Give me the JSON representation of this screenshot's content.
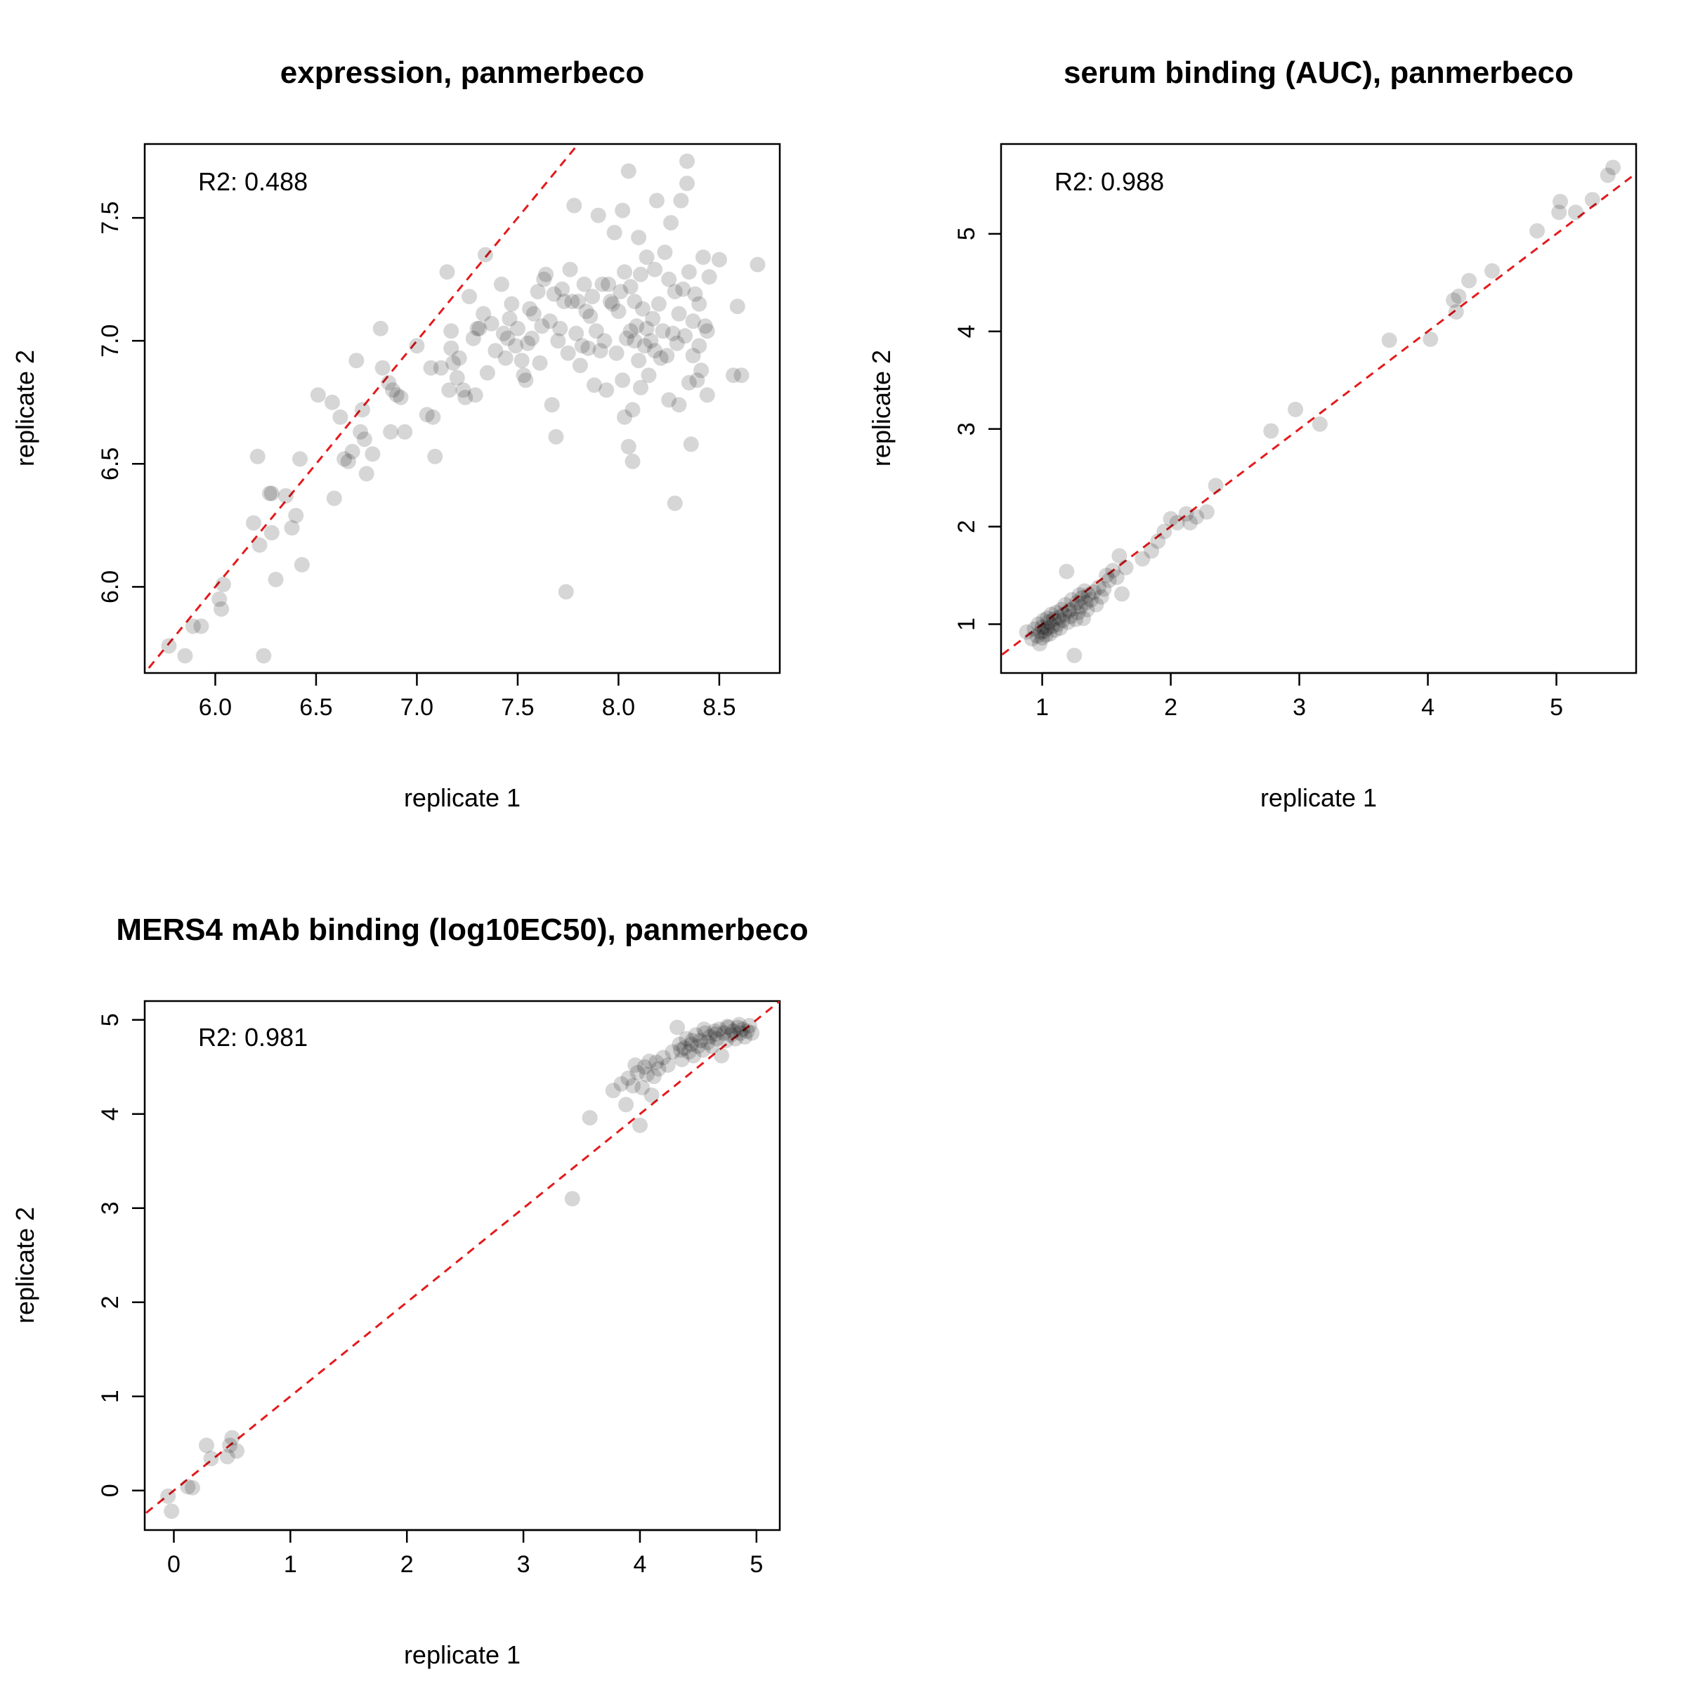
{
  "chart_data": [
    {
      "type": "scatter",
      "title": "expression, panmerbeco",
      "xlabel": "replicate 1",
      "ylabel": "replicate 2",
      "annotation": "R2: 0.488",
      "xlim": [
        5.65,
        8.8
      ],
      "ylim": [
        5.65,
        7.8
      ],
      "xticks": [
        "6.0",
        "6.5",
        "7.0",
        "7.5",
        "8.0",
        "8.5"
      ],
      "yticks": [
        "6.0",
        "6.5",
        "7.0",
        "7.5"
      ],
      "reference_line": "y = x",
      "grid": false,
      "points": [
        [
          5.77,
          5.76
        ],
        [
          5.85,
          5.72
        ],
        [
          5.89,
          5.84
        ],
        [
          5.93,
          5.84
        ],
        [
          6.02,
          5.95
        ],
        [
          6.03,
          5.91
        ],
        [
          6.04,
          6.01
        ],
        [
          6.19,
          6.26
        ],
        [
          6.21,
          6.53
        ],
        [
          6.22,
          6.17
        ],
        [
          6.24,
          5.72
        ],
        [
          6.27,
          6.38
        ],
        [
          6.28,
          6.38
        ],
        [
          6.28,
          6.22
        ],
        [
          6.3,
          6.03
        ],
        [
          6.35,
          6.37
        ],
        [
          6.38,
          6.24
        ],
        [
          6.4,
          6.29
        ],
        [
          6.42,
          6.52
        ],
        [
          6.43,
          6.09
        ],
        [
          6.51,
          6.78
        ],
        [
          6.58,
          6.75
        ],
        [
          6.59,
          6.36
        ],
        [
          6.62,
          6.69
        ],
        [
          6.64,
          6.52
        ],
        [
          6.66,
          6.51
        ],
        [
          6.68,
          6.55
        ],
        [
          6.7,
          6.92
        ],
        [
          6.72,
          6.63
        ],
        [
          6.73,
          6.72
        ],
        [
          6.74,
          6.6
        ],
        [
          6.75,
          6.46
        ],
        [
          6.78,
          6.54
        ],
        [
          6.82,
          7.05
        ],
        [
          6.83,
          6.89
        ],
        [
          6.86,
          6.83
        ],
        [
          6.87,
          6.63
        ],
        [
          6.88,
          6.8
        ],
        [
          6.9,
          6.78
        ],
        [
          6.92,
          6.77
        ],
        [
          6.94,
          6.63
        ],
        [
          7.0,
          6.98
        ],
        [
          7.05,
          6.7
        ],
        [
          7.07,
          6.89
        ],
        [
          7.08,
          6.69
        ],
        [
          7.09,
          6.53
        ],
        [
          7.12,
          6.89
        ],
        [
          7.15,
          7.28
        ],
        [
          7.16,
          6.8
        ],
        [
          7.17,
          7.04
        ],
        [
          7.17,
          6.97
        ],
        [
          7.18,
          6.91
        ],
        [
          7.2,
          6.85
        ],
        [
          7.21,
          6.93
        ],
        [
          7.23,
          6.8
        ],
        [
          7.24,
          6.77
        ],
        [
          7.26,
          7.18
        ],
        [
          7.28,
          7.01
        ],
        [
          7.29,
          6.78
        ],
        [
          7.3,
          7.05
        ],
        [
          7.31,
          7.05
        ],
        [
          7.33,
          7.11
        ],
        [
          7.34,
          7.35
        ],
        [
          7.35,
          6.87
        ],
        [
          7.37,
          7.07
        ],
        [
          7.39,
          6.96
        ],
        [
          7.42,
          7.23
        ],
        [
          7.43,
          7.03
        ],
        [
          7.44,
          6.93
        ],
        [
          7.45,
          7.01
        ],
        [
          7.46,
          7.09
        ],
        [
          7.47,
          7.15
        ],
        [
          7.49,
          6.98
        ],
        [
          7.5,
          7.05
        ],
        [
          7.52,
          6.92
        ],
        [
          7.53,
          6.86
        ],
        [
          7.54,
          6.84
        ],
        [
          7.55,
          6.99
        ],
        [
          7.56,
          7.13
        ],
        [
          7.57,
          7.01
        ],
        [
          7.58,
          7.11
        ],
        [
          7.6,
          7.2
        ],
        [
          7.61,
          6.91
        ],
        [
          7.62,
          7.06
        ],
        [
          7.63,
          7.25
        ],
        [
          7.64,
          7.27
        ],
        [
          7.66,
          7.08
        ],
        [
          7.67,
          6.74
        ],
        [
          7.68,
          7.19
        ],
        [
          7.69,
          6.61
        ],
        [
          7.7,
          7.0
        ],
        [
          7.71,
          7.05
        ],
        [
          7.72,
          7.21
        ],
        [
          7.73,
          7.16
        ],
        [
          7.74,
          5.98
        ],
        [
          7.75,
          6.95
        ],
        [
          7.76,
          7.29
        ],
        [
          7.77,
          7.16
        ],
        [
          7.78,
          7.55
        ],
        [
          7.79,
          7.03
        ],
        [
          7.8,
          7.16
        ],
        [
          7.81,
          6.9
        ],
        [
          7.82,
          6.98
        ],
        [
          7.83,
          7.23
        ],
        [
          7.84,
          7.12
        ],
        [
          7.85,
          6.97
        ],
        [
          7.86,
          7.1
        ],
        [
          7.87,
          7.18
        ],
        [
          7.88,
          6.82
        ],
        [
          7.89,
          7.04
        ],
        [
          7.9,
          7.51
        ],
        [
          7.91,
          6.96
        ],
        [
          7.92,
          7.23
        ],
        [
          7.93,
          7.0
        ],
        [
          7.94,
          6.8
        ],
        [
          7.95,
          7.23
        ],
        [
          7.96,
          7.16
        ],
        [
          7.97,
          7.15
        ],
        [
          7.98,
          7.44
        ],
        [
          7.99,
          6.95
        ],
        [
          8.0,
          7.12
        ],
        [
          8.01,
          7.2
        ],
        [
          8.02,
          7.53
        ],
        [
          8.02,
          6.84
        ],
        [
          8.03,
          7.28
        ],
        [
          8.03,
          6.69
        ],
        [
          8.04,
          7.01
        ],
        [
          8.05,
          6.57
        ],
        [
          8.05,
          7.69
        ],
        [
          8.06,
          7.22
        ],
        [
          8.06,
          7.04
        ],
        [
          8.07,
          6.72
        ],
        [
          8.07,
          6.51
        ],
        [
          8.08,
          7.16
        ],
        [
          8.08,
          7.0
        ],
        [
          8.09,
          7.06
        ],
        [
          8.1,
          7.42
        ],
        [
          8.1,
          6.92
        ],
        [
          8.11,
          6.81
        ],
        [
          8.11,
          7.27
        ],
        [
          8.12,
          7.13
        ],
        [
          8.13,
          6.98
        ],
        [
          8.14,
          7.05
        ],
        [
          8.14,
          7.34
        ],
        [
          8.15,
          6.86
        ],
        [
          8.16,
          7.0
        ],
        [
          8.17,
          7.09
        ],
        [
          8.18,
          7.29
        ],
        [
          8.18,
          6.96
        ],
        [
          8.19,
          7.57
        ],
        [
          8.2,
          7.15
        ],
        [
          8.21,
          6.93
        ],
        [
          8.22,
          7.04
        ],
        [
          8.23,
          7.36
        ],
        [
          8.24,
          6.94
        ],
        [
          8.25,
          7.25
        ],
        [
          8.25,
          6.76
        ],
        [
          8.26,
          7.48
        ],
        [
          8.27,
          7.03
        ],
        [
          8.28,
          6.34
        ],
        [
          8.28,
          7.2
        ],
        [
          8.29,
          6.99
        ],
        [
          8.3,
          7.11
        ],
        [
          8.3,
          6.74
        ],
        [
          8.31,
          7.57
        ],
        [
          8.32,
          7.21
        ],
        [
          8.33,
          7.02
        ],
        [
          8.34,
          7.64
        ],
        [
          8.34,
          7.73
        ],
        [
          8.35,
          7.28
        ],
        [
          8.35,
          6.83
        ],
        [
          8.36,
          6.58
        ],
        [
          8.37,
          7.08
        ],
        [
          8.37,
          6.94
        ],
        [
          8.38,
          7.19
        ],
        [
          8.39,
          6.84
        ],
        [
          8.4,
          6.98
        ],
        [
          8.4,
          7.15
        ],
        [
          8.41,
          6.88
        ],
        [
          8.42,
          7.34
        ],
        [
          8.43,
          7.06
        ],
        [
          8.44,
          6.78
        ],
        [
          8.44,
          7.04
        ],
        [
          8.45,
          7.26
        ],
        [
          8.5,
          7.33
        ],
        [
          8.57,
          6.86
        ],
        [
          8.59,
          7.14
        ],
        [
          8.61,
          6.86
        ],
        [
          8.69,
          7.31
        ]
      ]
    },
    {
      "type": "scatter",
      "title": "serum binding (AUC), panmerbeco",
      "xlabel": "replicate 1",
      "ylabel": "replicate 2",
      "annotation": "R2: 0.988",
      "xlim": [
        0.68,
        5.62
      ],
      "ylim": [
        0.5,
        5.92
      ],
      "xticks": [
        "1",
        "2",
        "3",
        "4",
        "5"
      ],
      "yticks": [
        "1",
        "2",
        "3",
        "4",
        "5"
      ],
      "reference_line": "y = x",
      "grid": false,
      "points": [
        [
          0.88,
          0.92
        ],
        [
          0.92,
          0.85
        ],
        [
          0.94,
          0.95
        ],
        [
          0.96,
          0.88
        ],
        [
          0.97,
          1.0
        ],
        [
          0.98,
          0.8
        ],
        [
          0.99,
          0.92
        ],
        [
          1.0,
          0.97
        ],
        [
          1.0,
          0.86
        ],
        [
          1.01,
          1.04
        ],
        [
          1.02,
          0.93
        ],
        [
          1.03,
          0.89
        ],
        [
          1.04,
          1.06
        ],
        [
          1.04,
          0.96
        ],
        [
          1.05,
          1.02
        ],
        [
          1.06,
          0.9
        ],
        [
          1.07,
          1.1
        ],
        [
          1.08,
          0.98
        ],
        [
          1.09,
          1.05
        ],
        [
          1.1,
          0.94
        ],
        [
          1.11,
          1.12
        ],
        [
          1.12,
          1.0
        ],
        [
          1.13,
          1.07
        ],
        [
          1.14,
          0.96
        ],
        [
          1.15,
          1.15
        ],
        [
          1.16,
          1.04
        ],
        [
          1.17,
          1.1
        ],
        [
          1.18,
          1.2
        ],
        [
          1.19,
          1.54
        ],
        [
          1.2,
          1.02
        ],
        [
          1.21,
          1.14
        ],
        [
          1.22,
          1.08
        ],
        [
          1.23,
          1.25
        ],
        [
          1.24,
          1.16
        ],
        [
          1.25,
          0.68
        ],
        [
          1.26,
          1.05
        ],
        [
          1.27,
          1.22
        ],
        [
          1.28,
          1.12
        ],
        [
          1.29,
          1.3
        ],
        [
          1.3,
          1.18
        ],
        [
          1.31,
          1.27
        ],
        [
          1.32,
          1.06
        ],
        [
          1.33,
          1.34
        ],
        [
          1.34,
          1.22
        ],
        [
          1.35,
          1.15
        ],
        [
          1.36,
          1.3
        ],
        [
          1.38,
          1.25
        ],
        [
          1.4,
          1.33
        ],
        [
          1.42,
          1.2
        ],
        [
          1.44,
          1.38
        ],
        [
          1.46,
          1.28
        ],
        [
          1.48,
          1.36
        ],
        [
          1.5,
          1.5
        ],
        [
          1.52,
          1.45
        ],
        [
          1.55,
          1.55
        ],
        [
          1.58,
          1.48
        ],
        [
          1.6,
          1.7
        ],
        [
          1.62,
          1.31
        ],
        [
          1.65,
          1.58
        ],
        [
          1.78,
          1.67
        ],
        [
          1.85,
          1.75
        ],
        [
          1.9,
          1.85
        ],
        [
          1.95,
          1.95
        ],
        [
          2.0,
          2.08
        ],
        [
          2.05,
          2.04
        ],
        [
          2.12,
          2.13
        ],
        [
          2.15,
          2.04
        ],
        [
          2.2,
          2.1
        ],
        [
          2.28,
          2.15
        ],
        [
          2.35,
          2.42
        ],
        [
          2.78,
          2.98
        ],
        [
          2.97,
          3.2
        ],
        [
          3.16,
          3.05
        ],
        [
          3.7,
          3.91
        ],
        [
          4.02,
          3.92
        ],
        [
          4.2,
          4.32
        ],
        [
          4.22,
          4.2
        ],
        [
          4.24,
          4.36
        ],
        [
          4.32,
          4.52
        ],
        [
          4.5,
          4.62
        ],
        [
          4.85,
          5.03
        ],
        [
          5.02,
          5.22
        ],
        [
          5.03,
          5.33
        ],
        [
          5.15,
          5.22
        ],
        [
          5.28,
          5.35
        ],
        [
          5.4,
          5.6
        ],
        [
          5.44,
          5.68
        ]
      ]
    },
    {
      "type": "scatter",
      "title": "MERS4 mAb binding (log10EC50), panmerbeco",
      "xlabel": "replicate 1",
      "ylabel": "replicate 2",
      "annotation": "R2: 0.981",
      "xlim": [
        -0.25,
        5.2
      ],
      "ylim": [
        -0.42,
        5.2
      ],
      "xticks": [
        "0",
        "1",
        "2",
        "3",
        "4",
        "5"
      ],
      "yticks": [
        "0",
        "1",
        "2",
        "3",
        "4",
        "5"
      ],
      "reference_line": "y = x",
      "grid": false,
      "points": [
        [
          -0.05,
          -0.06
        ],
        [
          -0.02,
          -0.22
        ],
        [
          0.12,
          0.04
        ],
        [
          0.16,
          0.03
        ],
        [
          0.28,
          0.48
        ],
        [
          0.32,
          0.34
        ],
        [
          0.46,
          0.36
        ],
        [
          0.48,
          0.48
        ],
        [
          0.5,
          0.56
        ],
        [
          0.54,
          0.42
        ],
        [
          3.42,
          3.1
        ],
        [
          3.57,
          3.96
        ],
        [
          3.77,
          4.25
        ],
        [
          3.84,
          4.32
        ],
        [
          3.88,
          4.1
        ],
        [
          3.9,
          4.38
        ],
        [
          3.94,
          4.3
        ],
        [
          3.96,
          4.52
        ],
        [
          3.98,
          4.44
        ],
        [
          4.0,
          3.88
        ],
        [
          4.02,
          4.28
        ],
        [
          4.04,
          4.5
        ],
        [
          4.06,
          4.42
        ],
        [
          4.08,
          4.56
        ],
        [
          4.1,
          4.2
        ],
        [
          4.12,
          4.4
        ],
        [
          4.14,
          4.55
        ],
        [
          4.16,
          4.48
        ],
        [
          4.2,
          4.6
        ],
        [
          4.24,
          4.52
        ],
        [
          4.28,
          4.66
        ],
        [
          4.32,
          4.92
        ],
        [
          4.34,
          4.74
        ],
        [
          4.36,
          4.58
        ],
        [
          4.38,
          4.7
        ],
        [
          4.4,
          4.8
        ],
        [
          4.42,
          4.66
        ],
        [
          4.44,
          4.74
        ],
        [
          4.46,
          4.62
        ],
        [
          4.48,
          4.84
        ],
        [
          4.5,
          4.72
        ],
        [
          4.52,
          4.78
        ],
        [
          4.54,
          4.68
        ],
        [
          4.56,
          4.86
        ],
        [
          4.58,
          4.76
        ],
        [
          4.6,
          4.82
        ],
        [
          4.62,
          4.72
        ],
        [
          4.64,
          4.88
        ],
        [
          4.66,
          4.8
        ],
        [
          4.68,
          4.9
        ],
        [
          4.7,
          4.62
        ],
        [
          4.72,
          4.86
        ],
        [
          4.74,
          4.78
        ],
        [
          4.76,
          4.92
        ],
        [
          4.78,
          4.84
        ],
        [
          4.8,
          4.88
        ],
        [
          4.82,
          4.8
        ],
        [
          4.84,
          4.92
        ],
        [
          4.86,
          4.86
        ],
        [
          4.88,
          4.9
        ],
        [
          4.9,
          4.82
        ],
        [
          4.92,
          4.88
        ],
        [
          4.94,
          4.94
        ],
        [
          4.96,
          4.86
        ],
        [
          4.75,
          4.93
        ],
        [
          4.85,
          4.95
        ],
        [
          4.65,
          4.85
        ],
        [
          4.55,
          4.9
        ],
        [
          4.45,
          4.78
        ],
        [
          4.35,
          4.68
        ]
      ]
    }
  ]
}
